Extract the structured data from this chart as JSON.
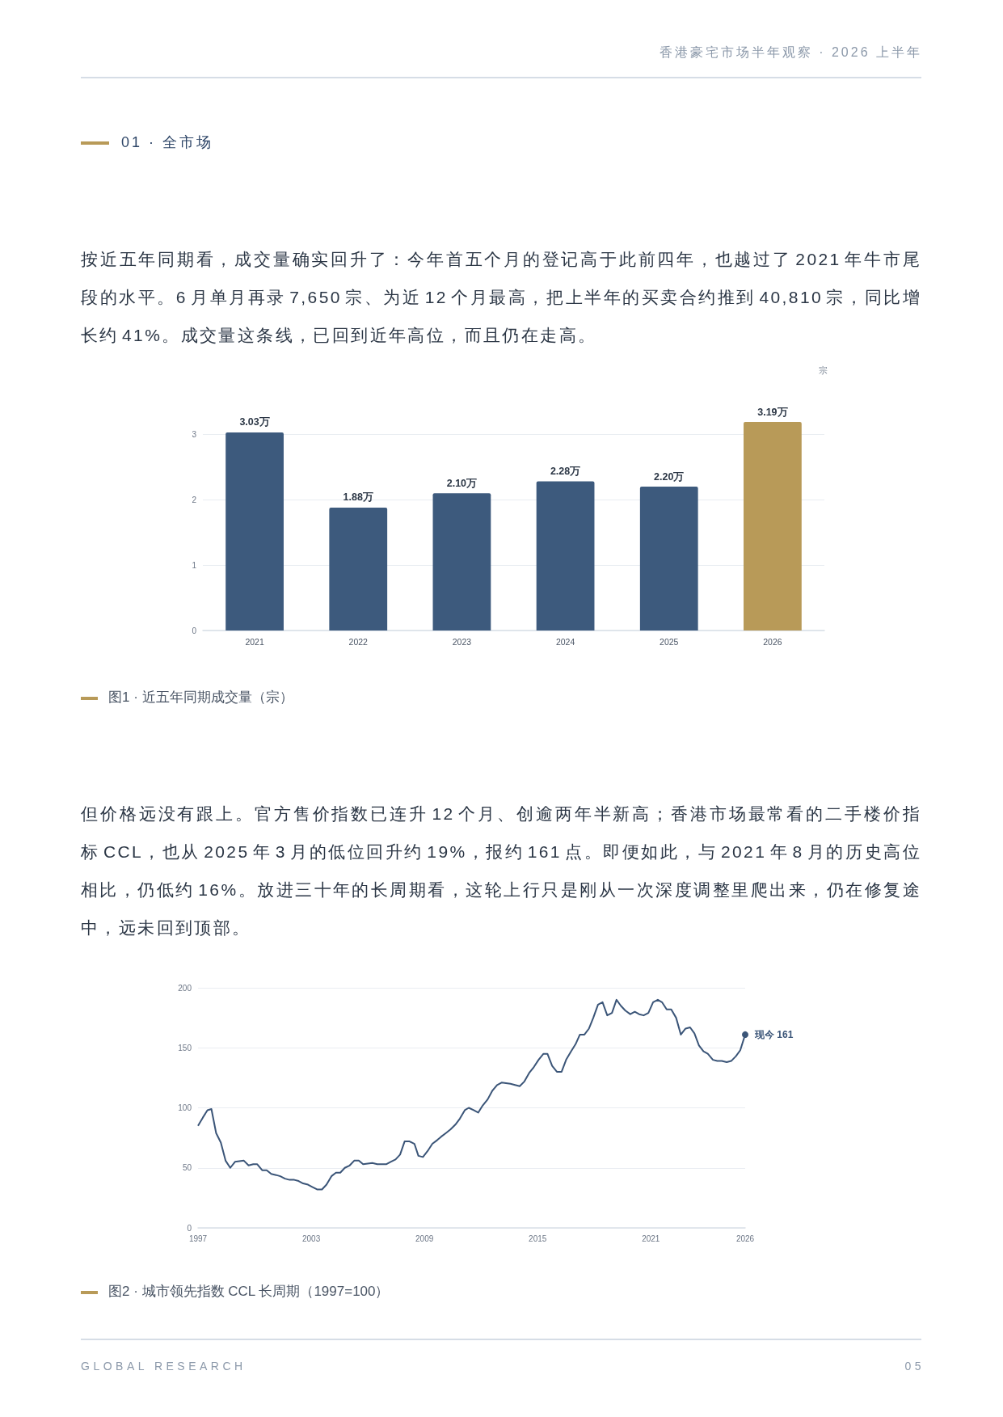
{
  "chart_data": [
    {
      "type": "bar",
      "title": "图1 · 近五年同期成交量（宗）",
      "subtitle": "按近五年同期看，成交量确实回升了：今年首五个月的登记高于此前四年，也越过了 2021 年牛市尾段的水平。6 月单月再录 7,650 宗、为近 12 个月最高，把上半年的买卖合约推到 40,810 宗，同比增长约 41%。成交量这条线，已回到近年高位，而且仍在走高。",
      "ylabel": "宗",
      "annotations": [
        "香港豪宅市场半年观察 · 2026 上半年",
        "01 · 全市场"
      ],
      "categories": [
        "2021",
        "2022",
        "2023",
        "2024",
        "2025",
        "2026"
      ],
      "values": [
        3.03,
        1.88,
        2.1,
        2.28,
        2.2,
        3.19
      ],
      "colors": [
        "#3d5a7d",
        "#3d5a7d",
        "#3d5a7d",
        "#3d5a7d",
        "#3d5a7d",
        "#b89a58"
      ],
      "value_labels": [
        "3.03万",
        "1.88万",
        "2.10万",
        "2.28万",
        "2.20万",
        "3.19万"
      ],
      "ylim": [
        0,
        3.19
      ],
      "yticks": [
        0,
        1,
        2,
        3
      ],
      "grid": "y"
    },
    {
      "type": "line",
      "title": "图2 · 城市领先指数 CCL 长周期（1997=100）",
      "subtitle": "但价格远没有跟上。官方售价指数已连升 12 个月、创逾两年半新高；香港市场最常看的二手楼价指标 CCL，也从 2025 年 3 月的低位回升约 19%，报约 161 点。即便如此，与 2021 年 8 月的历史高位相比，仍低约 16%。放进三十年的长周期看，这轮上行只是刚从一次深度调整里爬出来，仍在修复途中，远未回到顶部。",
      "annotations": [
        {
          "text": "现今 161",
          "x": 2026,
          "y": 161
        },
        "GLOBAL RESEARCH",
        "05"
      ],
      "x": [
        1997.0,
        1997.26,
        1997.5,
        1997.71,
        1997.96,
        1998.21,
        1998.46,
        1998.71,
        1998.96,
        1999.43,
        1999.68,
        1999.93,
        2000.14,
        2000.4,
        2000.64,
        2000.88,
        2001.14,
        2001.36,
        2001.61,
        2001.85,
        2002.1,
        2002.33,
        2002.57,
        2002.83,
        2003.07,
        2003.31,
        2003.57,
        2003.81,
        2004.07,
        2004.31,
        2004.54,
        2004.78,
        2005.04,
        2005.28,
        2005.52,
        2005.75,
        2006.24,
        2006.5,
        2006.97,
        2007.21,
        2007.47,
        2007.71,
        2007.95,
        2008.21,
        2008.47,
        2008.68,
        2008.92,
        2009.17,
        2009.42,
        2009.67,
        2009.89,
        2010.14,
        2010.38,
        2010.64,
        2010.88,
        2011.14,
        2011.35,
        2011.61,
        2011.85,
        2012.09,
        2012.35,
        2012.59,
        2012.85,
        2013.09,
        2013.56,
        2013.8,
        2014.05,
        2014.3,
        2014.55,
        2014.8,
        2015.05,
        2015.31,
        2015.52,
        2015.77,
        2016.02,
        2016.27,
        2016.51,
        2016.77,
        2017.01,
        2017.24,
        2017.48,
        2017.72,
        2017.95,
        2018.2,
        2018.44,
        2018.69,
        2018.94,
        2019.18,
        2019.41,
        2019.65,
        2019.91,
        2020.15,
        2020.38,
        2020.62,
        2020.87,
        2021.12,
        2021.37,
        2021.59,
        2021.84,
        2022.08,
        2022.34,
        2022.59,
        2022.84,
        2023.08,
        2023.31,
        2023.55,
        2023.79,
        2024.02,
        2024.29,
        2024.52,
        2024.76,
        2025.02,
        2025.26,
        2025.51,
        2025.74,
        2026
      ],
      "values": [
        85,
        92,
        98,
        99,
        79,
        71,
        56,
        50,
        55,
        56,
        52,
        53,
        53,
        48,
        48,
        45,
        44,
        43,
        41,
        40,
        40,
        39,
        37,
        36,
        34,
        32,
        32,
        36,
        43,
        46,
        46,
        50,
        52,
        56,
        56,
        53,
        54,
        53,
        53,
        55,
        57,
        61,
        72,
        72,
        70,
        60,
        59,
        64,
        70,
        73,
        76,
        79,
        82,
        86,
        91,
        98,
        100,
        98,
        96,
        102,
        107,
        114,
        119,
        121,
        120,
        119,
        118,
        122,
        129,
        134,
        140,
        145,
        145,
        135,
        130,
        130,
        140,
        147,
        153,
        161,
        161,
        166,
        175,
        186,
        188,
        177,
        179,
        190,
        185,
        181,
        178,
        180,
        178,
        177,
        179,
        188,
        190,
        188,
        182,
        182,
        175,
        161,
        166,
        167,
        162,
        152,
        147,
        145,
        140,
        139,
        139,
        138,
        139,
        143,
        148,
        161
      ],
      "color": "#3b5578",
      "xlim": [
        1997,
        2026
      ],
      "xticks": [
        1997,
        2003,
        2009,
        2015,
        2021,
        2026
      ],
      "ylim": [
        0,
        200
      ],
      "yticks": [
        0,
        50,
        100,
        150,
        200
      ],
      "grid": "y",
      "marker": "none"
    }
  ]
}
